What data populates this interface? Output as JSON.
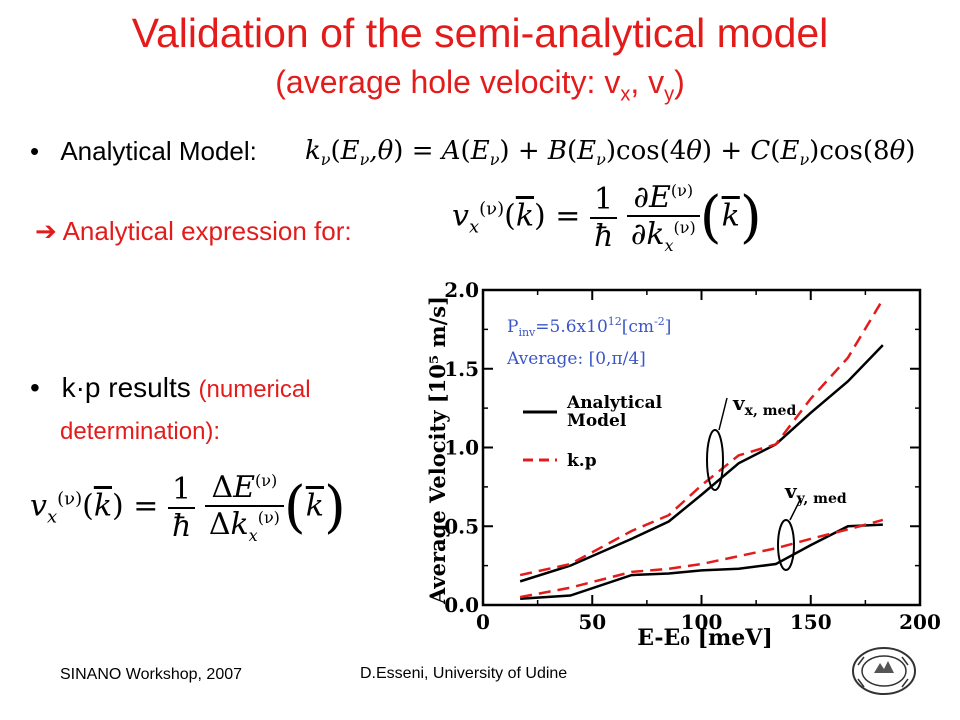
{
  "title": "Validation of the semi-analytical model",
  "subtitle_main": "(average hole velocity: v",
  "subtitle_sub1": "x",
  "subtitle_mid": ", v",
  "subtitle_sub2": "y",
  "subtitle_end": ")",
  "bullet1": "Analytical Model:",
  "arrow_text": "➔ Analytical expression for:",
  "bullet2_main": "k·p results",
  "bullet2_red1": "(numerical",
  "bullet2_red2": "determination):",
  "footer_left": "SINANO Workshop, 2007",
  "footer_center": "D.Esseni, University of Udine",
  "chart_data": {
    "type": "line",
    "xlabel": "E-E₀ [meV]",
    "ylabel": "Average Velocity [10⁵ m/s]",
    "xlim": [
      0,
      200
    ],
    "ylim": [
      0.0,
      2.0
    ],
    "xticks": [
      "0",
      "50",
      "100",
      "150",
      "200"
    ],
    "yticks": [
      "0.0",
      "0.5",
      "1.0",
      "1.5",
      "2.0"
    ],
    "annotations": {
      "pinv": "P_inv=5.6x10^12[cm^-2]",
      "average": "Average: [0,π/4]",
      "vx_label": "v",
      "vx_sub": "x, med",
      "vy_label": "v",
      "vy_sub": "y, med"
    },
    "legend": [
      {
        "label": "Analytical Model",
        "color": "#000000",
        "dash": false
      },
      {
        "label": "k.p",
        "color": "#e31b1b",
        "dash": true
      }
    ],
    "series": [
      {
        "name": "Analytical Model",
        "curve": "vx",
        "color": "#000000",
        "dash": false,
        "x": [
          17,
          40,
          68,
          85,
          100,
          117,
          134,
          150,
          167,
          183
        ],
        "y": [
          0.15,
          0.25,
          0.42,
          0.53,
          0.7,
          0.9,
          1.02,
          1.22,
          1.42,
          1.65
        ]
      },
      {
        "name": "k.p",
        "curve": "vx",
        "color": "#e31b1b",
        "dash": true,
        "x": [
          17,
          40,
          68,
          85,
          100,
          117,
          134,
          150,
          167,
          183
        ],
        "y": [
          0.19,
          0.26,
          0.47,
          0.57,
          0.76,
          0.95,
          1.02,
          1.31,
          1.57,
          1.94
        ]
      },
      {
        "name": "Analytical Model",
        "curve": "vy",
        "color": "#000000",
        "dash": false,
        "x": [
          17,
          40,
          68,
          85,
          100,
          117,
          134,
          150,
          167,
          183
        ],
        "y": [
          0.04,
          0.06,
          0.19,
          0.2,
          0.22,
          0.23,
          0.26,
          0.38,
          0.5,
          0.51
        ]
      },
      {
        "name": "k.p",
        "curve": "vy",
        "color": "#e31b1b",
        "dash": true,
        "x": [
          17,
          40,
          68,
          85,
          100,
          117,
          134,
          150,
          167,
          183
        ],
        "y": [
          0.05,
          0.11,
          0.21,
          0.23,
          0.26,
          0.31,
          0.36,
          0.42,
          0.48,
          0.54
        ]
      }
    ]
  }
}
